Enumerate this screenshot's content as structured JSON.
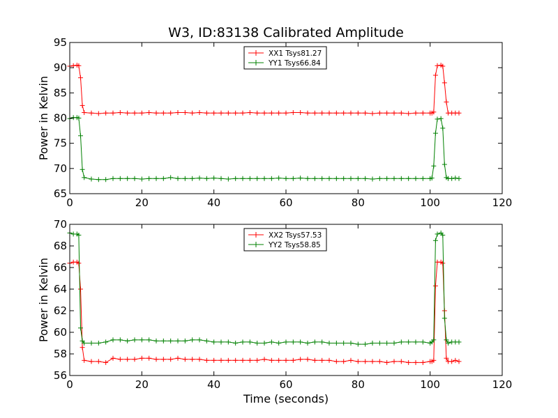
{
  "title": "W3, ID:83138 Calibrated Amplitude",
  "chart_data": [
    {
      "type": "line",
      "title": "W3, ID:83138 Calibrated Amplitude",
      "xlabel": "",
      "ylabel": "Power in Kelvin",
      "xlim": [
        0,
        120
      ],
      "ylim": [
        65,
        95
      ],
      "xticks": [
        0,
        20,
        40,
        60,
        80,
        100,
        120
      ],
      "yticks": [
        65,
        70,
        75,
        80,
        85,
        90,
        95
      ],
      "grid": false,
      "legend_position": "top-center",
      "x": [
        0,
        1,
        2,
        2.5,
        3,
        3.5,
        4,
        6,
        8,
        10,
        12,
        14,
        16,
        18,
        20,
        22,
        24,
        26,
        28,
        30,
        32,
        34,
        36,
        38,
        40,
        42,
        44,
        46,
        48,
        50,
        52,
        54,
        56,
        58,
        60,
        62,
        64,
        66,
        68,
        70,
        72,
        74,
        76,
        78,
        80,
        82,
        84,
        86,
        88,
        90,
        92,
        94,
        96,
        98,
        100,
        100.5,
        101,
        101.5,
        102,
        103,
        103.5,
        104,
        104.5,
        105,
        106,
        107,
        108
      ],
      "series": [
        {
          "name": "XX1 Tsys81.27",
          "color": "#ff0000",
          "values": [
            90.3,
            90.4,
            90.5,
            90.4,
            88.0,
            82.5,
            81.1,
            81.0,
            80.9,
            81.0,
            81.0,
            81.1,
            81.0,
            81.0,
            81.0,
            81.1,
            81.0,
            81.0,
            81.0,
            81.1,
            81.1,
            81.0,
            81.1,
            81.0,
            81.0,
            81.0,
            81.0,
            81.0,
            81.0,
            81.1,
            81.0,
            81.0,
            81.0,
            81.0,
            81.0,
            81.1,
            81.1,
            81.0,
            81.0,
            81.0,
            81.0,
            81.0,
            81.0,
            81.0,
            81.0,
            81.0,
            80.9,
            81.0,
            81.0,
            81.0,
            81.0,
            80.9,
            81.0,
            81.0,
            81.0,
            81.0,
            81.2,
            88.5,
            90.4,
            90.5,
            90.3,
            87.0,
            83.2,
            81.0,
            81.0,
            81.0,
            81.0
          ]
        },
        {
          "name": "YY1 Tsys66.84",
          "color": "#008000",
          "values": [
            79.9,
            80.1,
            80.1,
            80.0,
            76.5,
            69.8,
            68.2,
            67.9,
            67.8,
            67.8,
            68.0,
            68.0,
            68.0,
            68.0,
            67.9,
            68.0,
            68.0,
            68.0,
            68.2,
            68.0,
            68.0,
            68.0,
            68.1,
            68.0,
            68.1,
            68.0,
            67.9,
            68.0,
            68.0,
            68.0,
            68.0,
            68.0,
            68.0,
            68.1,
            68.0,
            68.0,
            68.1,
            68.0,
            68.0,
            68.0,
            68.0,
            68.0,
            68.0,
            68.0,
            68.0,
            68.0,
            67.9,
            68.0,
            68.0,
            68.0,
            68.0,
            68.0,
            68.0,
            68.0,
            68.0,
            68.1,
            70.5,
            77.0,
            79.8,
            79.9,
            78.0,
            70.8,
            68.2,
            68.0,
            68.0,
            68.1,
            68.0
          ]
        }
      ]
    },
    {
      "type": "line",
      "title": "",
      "xlabel": "Time (seconds)",
      "ylabel": "Power in Kelvin",
      "xlim": [
        0,
        120
      ],
      "ylim": [
        56,
        70
      ],
      "xticks": [
        0,
        20,
        40,
        60,
        80,
        100,
        120
      ],
      "yticks": [
        56,
        58,
        60,
        62,
        64,
        66,
        68,
        70
      ],
      "grid": false,
      "legend_position": "top-center",
      "x": [
        0,
        1,
        2,
        2.5,
        3,
        3.5,
        4,
        6,
        8,
        10,
        12,
        14,
        16,
        18,
        20,
        22,
        24,
        26,
        28,
        30,
        32,
        34,
        36,
        38,
        40,
        42,
        44,
        46,
        48,
        50,
        52,
        54,
        56,
        58,
        60,
        62,
        64,
        66,
        68,
        70,
        72,
        74,
        76,
        78,
        80,
        82,
        84,
        86,
        88,
        90,
        92,
        94,
        96,
        98,
        100,
        100.5,
        101,
        101.5,
        102,
        103,
        103.5,
        104,
        104.5,
        105,
        106,
        107,
        108
      ],
      "series": [
        {
          "name": "XX2 Tsys57.53",
          "color": "#ff0000",
          "values": [
            66.4,
            66.5,
            66.5,
            66.4,
            64.0,
            58.6,
            57.4,
            57.3,
            57.3,
            57.2,
            57.6,
            57.5,
            57.5,
            57.5,
            57.6,
            57.6,
            57.5,
            57.5,
            57.5,
            57.6,
            57.5,
            57.5,
            57.5,
            57.4,
            57.4,
            57.4,
            57.4,
            57.4,
            57.4,
            57.4,
            57.4,
            57.5,
            57.4,
            57.4,
            57.4,
            57.4,
            57.5,
            57.5,
            57.4,
            57.4,
            57.4,
            57.3,
            57.3,
            57.4,
            57.3,
            57.3,
            57.3,
            57.3,
            57.2,
            57.3,
            57.3,
            57.2,
            57.2,
            57.2,
            57.3,
            57.3,
            57.4,
            64.3,
            66.5,
            66.5,
            66.4,
            62.0,
            57.6,
            57.3,
            57.3,
            57.4,
            57.3
          ]
        },
        {
          "name": "YY2 Tsys58.85",
          "color": "#008000",
          "values": [
            69.2,
            69.1,
            69.1,
            69.0,
            60.4,
            59.2,
            59.0,
            59.0,
            59.0,
            59.1,
            59.3,
            59.3,
            59.2,
            59.3,
            59.3,
            59.3,
            59.2,
            59.2,
            59.2,
            59.2,
            59.2,
            59.3,
            59.3,
            59.2,
            59.1,
            59.1,
            59.1,
            59.0,
            59.1,
            59.1,
            59.0,
            59.0,
            59.1,
            59.0,
            59.1,
            59.1,
            59.1,
            59.0,
            59.1,
            59.1,
            59.0,
            59.0,
            59.0,
            59.0,
            58.9,
            58.9,
            59.0,
            59.0,
            59.0,
            59.0,
            59.1,
            59.1,
            59.1,
            59.1,
            59.0,
            59.1,
            59.3,
            68.5,
            69.1,
            69.2,
            69.0,
            61.3,
            59.3,
            59.0,
            59.1,
            59.1,
            59.1
          ]
        }
      ]
    }
  ]
}
